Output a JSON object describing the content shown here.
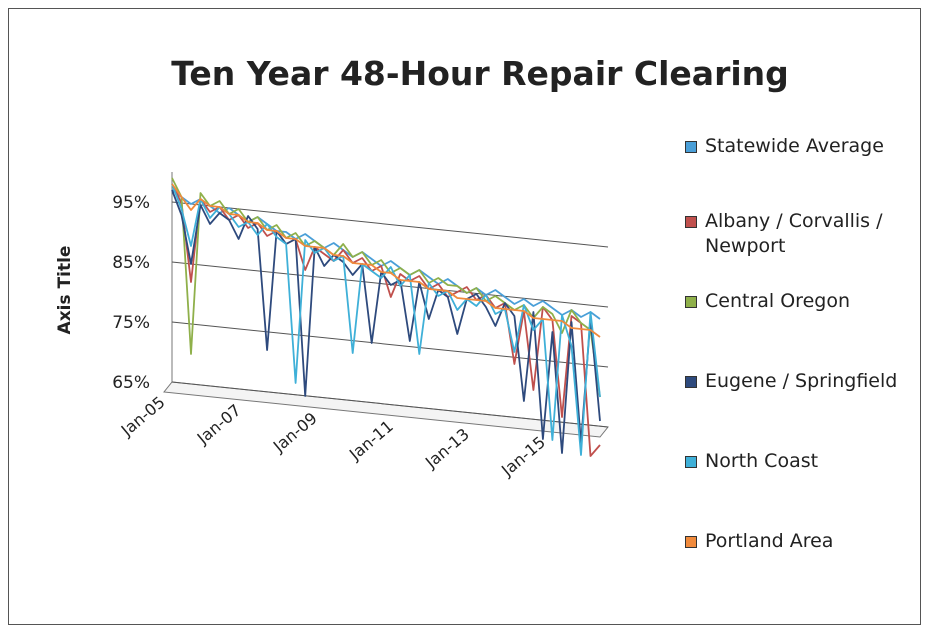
{
  "chart_data": {
    "type": "line",
    "title": "Ten Year 48-Hour Repair Clearing",
    "y_label": "Axis Title",
    "categories": [
      "Jan-05",
      null,
      null,
      null,
      null,
      null,
      null,
      null,
      "Jan-07",
      null,
      null,
      null,
      null,
      null,
      null,
      null,
      "Jan-09",
      null,
      null,
      null,
      null,
      null,
      null,
      null,
      "Jan-11",
      null,
      null,
      null,
      null,
      null,
      null,
      null,
      "Jan-13",
      null,
      null,
      null,
      null,
      null,
      null,
      null,
      "Jan-15",
      null,
      null,
      null,
      null,
      null
    ],
    "ylim": [
      65,
      100
    ],
    "yticks": [
      {
        "value": 65,
        "label": "65%"
      },
      {
        "value": 75,
        "label": "75%"
      },
      {
        "value": 85,
        "label": "85%"
      },
      {
        "value": 95,
        "label": "95%"
      }
    ],
    "grid": true,
    "legend": "right",
    "series": [
      {
        "name": "Statewide Average",
        "color": "#4a9fd8",
        "values": [
          97,
          96,
          95,
          96,
          95,
          94,
          95,
          94,
          93,
          94,
          93,
          92,
          92,
          91,
          92,
          91,
          90,
          91,
          90,
          89,
          90,
          89,
          88,
          89,
          88,
          87,
          88,
          87,
          86,
          87,
          86,
          85,
          86,
          85,
          86,
          85,
          84,
          85,
          84,
          85,
          84,
          83,
          84,
          83,
          84,
          83
        ]
      },
      {
        "name": "Albany / Corvallis / Newport",
        "color": "#c0504d",
        "values": [
          98,
          95,
          82,
          96,
          94,
          95,
          93,
          94,
          92,
          93,
          91,
          92,
          90,
          91,
          86,
          90,
          89,
          88,
          90,
          88,
          89,
          87,
          88,
          83,
          87,
          86,
          87,
          85,
          86,
          84,
          85,
          86,
          84,
          85,
          83,
          84,
          74,
          83,
          70,
          84,
          82,
          66,
          83,
          82,
          60,
          62
        ]
      },
      {
        "name": "Central Oregon",
        "color": "#8fb04a",
        "values": [
          99,
          96,
          70,
          97,
          95,
          96,
          94,
          95,
          93,
          94,
          92,
          93,
          91,
          92,
          90,
          91,
          90,
          89,
          91,
          89,
          90,
          88,
          89,
          87,
          88,
          87,
          88,
          86,
          87,
          86,
          86,
          85,
          86,
          84,
          85,
          84,
          83,
          84,
          82,
          84,
          83,
          80,
          84,
          82,
          81,
          70
        ]
      },
      {
        "name": "Eugene / Springfield",
        "color": "#2e4a7d",
        "values": [
          97,
          93,
          85,
          95,
          92,
          94,
          93,
          90,
          94,
          92,
          72,
          92,
          90,
          91,
          65,
          90,
          87,
          89,
          88,
          86,
          88,
          75,
          87,
          85,
          86,
          76,
          86,
          80,
          85,
          84,
          78,
          84,
          85,
          83,
          80,
          84,
          82,
          68,
          83,
          62,
          80,
          60,
          82,
          62,
          83,
          66
        ]
      },
      {
        "name": "North Coast",
        "color": "#3fb0d8",
        "values": [
          98,
          94,
          88,
          96,
          93,
          95,
          94,
          92,
          93,
          91,
          93,
          91,
          90,
          67,
          91,
          89,
          90,
          88,
          89,
          73,
          88,
          87,
          86,
          88,
          85,
          87,
          74,
          86,
          84,
          85,
          82,
          84,
          83,
          85,
          82,
          83,
          76,
          84,
          80,
          82,
          62,
          83,
          78,
          60,
          84,
          70
        ]
      },
      {
        "name": "Portland Area",
        "color": "#f08a3c",
        "values": [
          98,
          96,
          94,
          96,
          95,
          95,
          94,
          94,
          93,
          93,
          92,
          92,
          91,
          91,
          90,
          90,
          90,
          89,
          89,
          88,
          88,
          88,
          87,
          87,
          86,
          86,
          86,
          85,
          85,
          85,
          84,
          84,
          84,
          84,
          83,
          83,
          83,
          83,
          82,
          82,
          82,
          82,
          81,
          81,
          81,
          80
        ]
      }
    ]
  }
}
